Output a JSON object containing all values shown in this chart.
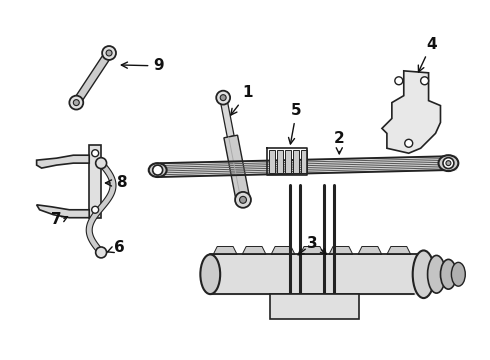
{
  "background_color": "#ffffff",
  "line_color": "#222222",
  "figsize": [
    4.9,
    3.6
  ],
  "dpi": 100
}
